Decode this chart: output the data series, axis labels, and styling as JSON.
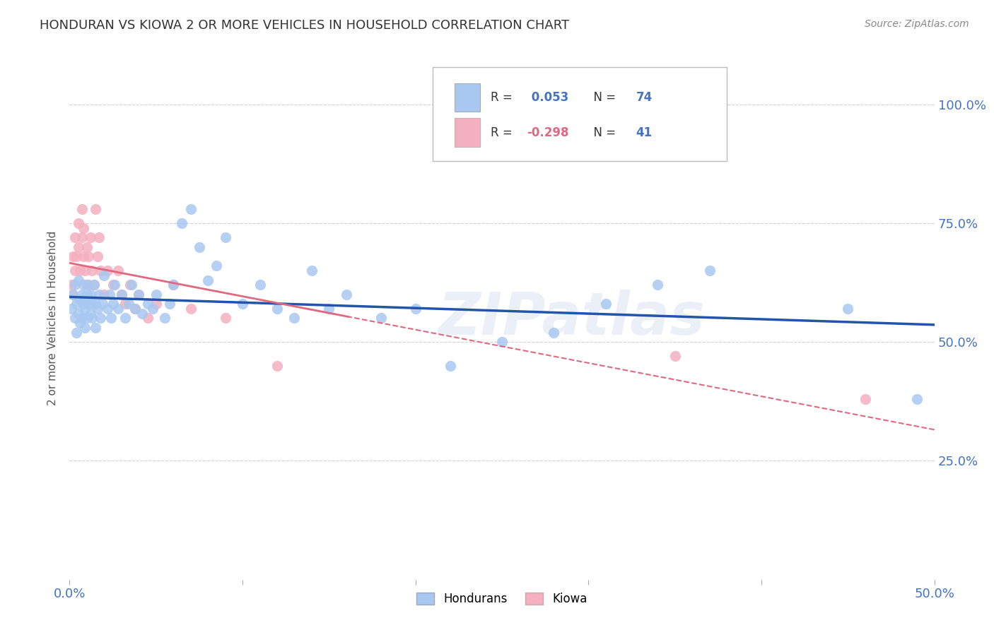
{
  "title": "HONDURAN VS KIOWA 2 OR MORE VEHICLES IN HOUSEHOLD CORRELATION CHART",
  "source": "Source: ZipAtlas.com",
  "ylabel": "2 or more Vehicles in Household",
  "y_tick_labels": [
    "",
    "25.0%",
    "50.0%",
    "75.0%",
    "100.0%"
  ],
  "x_min": 0.0,
  "x_max": 0.5,
  "y_min": 0.0,
  "y_max": 1.1,
  "hondurans_R": 0.053,
  "hondurans_N": 74,
  "kiowa_R": -0.298,
  "kiowa_N": 41,
  "honduran_color": "#A8C8F0",
  "kiowa_color": "#F4B0C0",
  "trendline_honduran_color": "#2255AA",
  "trendline_kiowa_color": "#E06880",
  "watermark": "ZIPatlas",
  "legend_R_color": "#333333",
  "legend_val_blue": "#4472C4",
  "legend_val_pink": "#E06880",
  "honduran_x": [
    0.001,
    0.002,
    0.003,
    0.003,
    0.004,
    0.004,
    0.005,
    0.005,
    0.006,
    0.006,
    0.007,
    0.007,
    0.008,
    0.008,
    0.009,
    0.009,
    0.01,
    0.01,
    0.011,
    0.011,
    0.012,
    0.012,
    0.013,
    0.013,
    0.014,
    0.015,
    0.015,
    0.016,
    0.017,
    0.018,
    0.019,
    0.02,
    0.022,
    0.023,
    0.024,
    0.025,
    0.026,
    0.028,
    0.03,
    0.032,
    0.034,
    0.036,
    0.038,
    0.04,
    0.042,
    0.045,
    0.048,
    0.05,
    0.055,
    0.058,
    0.06,
    0.065,
    0.07,
    0.075,
    0.08,
    0.085,
    0.09,
    0.1,
    0.11,
    0.12,
    0.13,
    0.14,
    0.15,
    0.16,
    0.18,
    0.2,
    0.22,
    0.25,
    0.28,
    0.31,
    0.34,
    0.37,
    0.45,
    0.49
  ],
  "honduran_y": [
    0.57,
    0.6,
    0.55,
    0.62,
    0.58,
    0.52,
    0.56,
    0.63,
    0.54,
    0.59,
    0.6,
    0.55,
    0.58,
    0.62,
    0.57,
    0.53,
    0.6,
    0.55,
    0.58,
    0.62,
    0.56,
    0.6,
    0.55,
    0.58,
    0.62,
    0.58,
    0.53,
    0.57,
    0.6,
    0.55,
    0.58,
    0.64,
    0.57,
    0.6,
    0.55,
    0.58,
    0.62,
    0.57,
    0.6,
    0.55,
    0.58,
    0.62,
    0.57,
    0.6,
    0.56,
    0.58,
    0.57,
    0.6,
    0.55,
    0.58,
    0.62,
    0.75,
    0.78,
    0.7,
    0.63,
    0.66,
    0.72,
    0.58,
    0.62,
    0.57,
    0.55,
    0.65,
    0.57,
    0.6,
    0.55,
    0.57,
    0.45,
    0.5,
    0.52,
    0.58,
    0.62,
    0.65,
    0.57,
    0.38
  ],
  "kiowa_x": [
    0.001,
    0.002,
    0.002,
    0.003,
    0.003,
    0.004,
    0.005,
    0.005,
    0.006,
    0.007,
    0.007,
    0.008,
    0.008,
    0.009,
    0.01,
    0.01,
    0.011,
    0.012,
    0.013,
    0.014,
    0.015,
    0.016,
    0.017,
    0.018,
    0.02,
    0.022,
    0.025,
    0.028,
    0.03,
    0.032,
    0.035,
    0.038,
    0.04,
    0.045,
    0.05,
    0.06,
    0.07,
    0.09,
    0.12,
    0.35,
    0.46
  ],
  "kiowa_y": [
    0.62,
    0.6,
    0.68,
    0.65,
    0.72,
    0.68,
    0.7,
    0.75,
    0.65,
    0.72,
    0.78,
    0.68,
    0.74,
    0.65,
    0.7,
    0.62,
    0.68,
    0.72,
    0.65,
    0.62,
    0.78,
    0.68,
    0.72,
    0.65,
    0.6,
    0.65,
    0.62,
    0.65,
    0.6,
    0.58,
    0.62,
    0.57,
    0.6,
    0.55,
    0.58,
    0.62,
    0.57,
    0.55,
    0.45,
    0.47,
    0.38
  ]
}
